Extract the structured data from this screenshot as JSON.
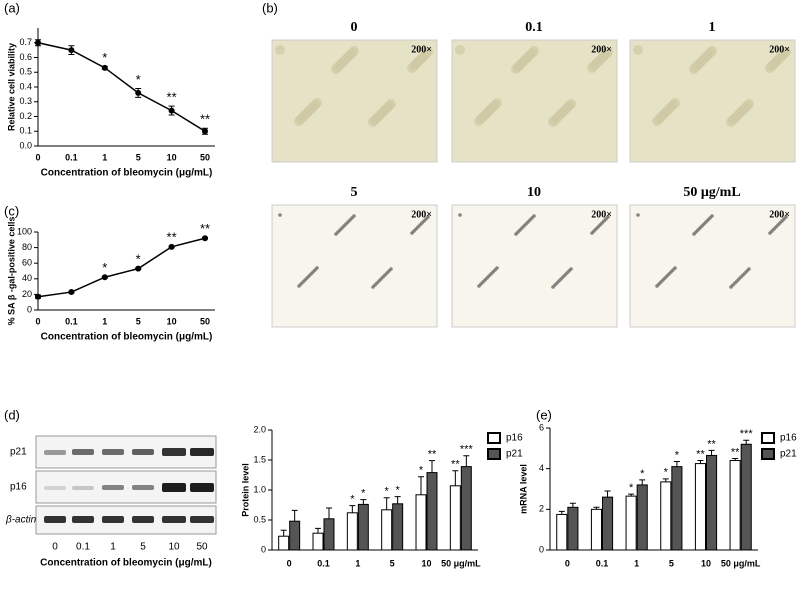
{
  "panels": {
    "a": "(a)",
    "b": "(b)",
    "c": "(c)",
    "d": "(d)",
    "e": "(e)"
  },
  "micrographs": {
    "labels": [
      "0",
      "0.1",
      "1",
      "5",
      "10",
      "50 μg/mL"
    ],
    "magnification": "200×"
  },
  "western_blot": {
    "rows": [
      "p21",
      "p16",
      "β-actin"
    ],
    "lanes": [
      "0",
      "0.1",
      "1",
      "5",
      "10",
      "50"
    ],
    "xlabel": "Concentration of bleomycin (μg/mL)"
  },
  "chart_data": [
    {
      "type": "line",
      "xlabel": "Concentration of bleomycin (μg/mL)",
      "ylabel": "Relative cell viability",
      "categories": [
        "0",
        "0.1",
        "1",
        "5",
        "10",
        "50"
      ],
      "values": [
        0.7,
        0.65,
        0.53,
        0.36,
        0.24,
        0.1
      ],
      "errors": [
        0.02,
        0.03,
        0.01,
        0.03,
        0.03,
        0.02
      ],
      "annotations": [
        null,
        null,
        "*",
        "*",
        "**",
        "**"
      ],
      "ylim": [
        0,
        0.8
      ],
      "yticks": [
        {
          "value": 0,
          "label": "0.0"
        },
        0.1,
        0.2,
        0.3,
        0.4,
        0.5,
        0.6,
        0.7
      ]
    },
    {
      "type": "line",
      "xlabel": "Concentration of bleomycin (μg/mL)",
      "ylabel": "% SA β -gal-positive cells",
      "categories": [
        "0",
        "0.1",
        "1",
        "5",
        "10",
        "50"
      ],
      "values": [
        17,
        23,
        42,
        53,
        81,
        92
      ],
      "errors": [
        2,
        1,
        1,
        1,
        1,
        1
      ],
      "annotations": [
        null,
        null,
        "*",
        "*",
        "**",
        "**"
      ],
      "ylim": [
        0,
        100
      ],
      "yticks": [
        0,
        20,
        40,
        60,
        80,
        100
      ]
    },
    {
      "type": "bar",
      "ylabel": "Protein level",
      "categories": [
        "0",
        "0.1",
        "1",
        "5",
        "10",
        "50 μg/mL"
      ],
      "series": [
        {
          "name": "p16",
          "color": "#ffffff",
          "values": [
            0.23,
            0.28,
            0.62,
            0.67,
            0.92,
            1.07
          ],
          "errors": [
            0.1,
            0.08,
            0.12,
            0.2,
            0.3,
            0.25
          ],
          "annotations": [
            null,
            null,
            "*",
            "*",
            "*",
            "**"
          ]
        },
        {
          "name": "p21",
          "color": "#555555",
          "values": [
            0.48,
            0.52,
            0.76,
            0.77,
            1.29,
            1.39
          ],
          "errors": [
            0.18,
            0.18,
            0.08,
            0.12,
            0.2,
            0.18
          ],
          "annotations": [
            null,
            null,
            "*",
            "*",
            "**",
            "***"
          ]
        }
      ],
      "ylim": [
        0,
        2
      ],
      "yticks": [
        0,
        0.5,
        {
          "value": 1,
          "label": "1.0"
        },
        1.5,
        {
          "value": 2,
          "label": "2.0"
        }
      ]
    },
    {
      "type": "bar",
      "ylabel": "mRNA level",
      "categories": [
        "0",
        "0.1",
        "1",
        "5",
        "10",
        "50 μg/mL"
      ],
      "series": [
        {
          "name": "p16",
          "color": "#ffffff",
          "values": [
            1.75,
            2.0,
            2.65,
            3.35,
            4.25,
            4.4
          ],
          "errors": [
            0.15,
            0.1,
            0.1,
            0.15,
            0.15,
            0.1
          ],
          "annotations": [
            null,
            null,
            "*",
            "*",
            "**",
            "**"
          ]
        },
        {
          "name": "p21",
          "color": "#555555",
          "values": [
            2.1,
            2.6,
            3.2,
            4.1,
            4.65,
            5.2
          ],
          "errors": [
            0.2,
            0.3,
            0.25,
            0.25,
            0.25,
            0.2
          ],
          "annotations": [
            null,
            null,
            "*",
            "*",
            "**",
            "***"
          ]
        }
      ],
      "ylim": [
        0,
        6
      ],
      "yticks": [
        0,
        2,
        4,
        6
      ]
    }
  ]
}
